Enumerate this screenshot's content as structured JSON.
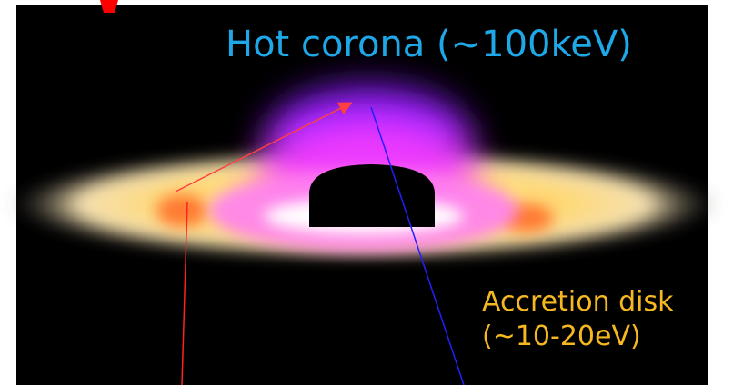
{
  "labels": {
    "corona": "Hot corona (~100keV)",
    "disk_line1": "Accretion disk",
    "disk_line2": "(~10-20eV)"
  }
}
